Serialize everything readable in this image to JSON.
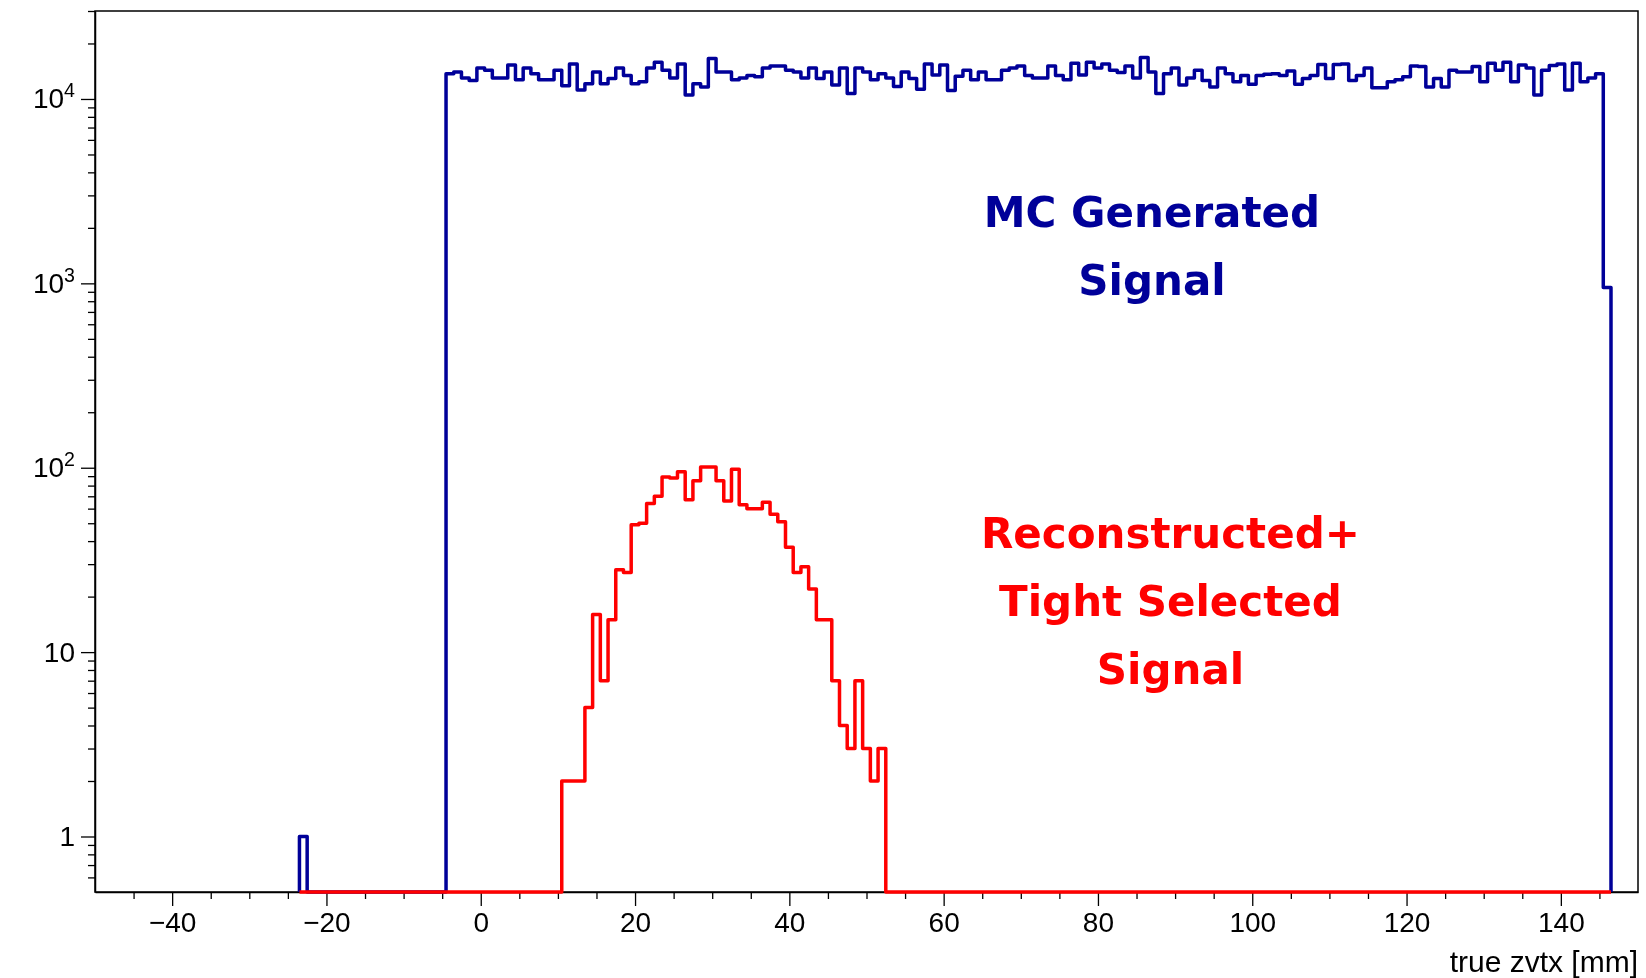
{
  "chart_data": {
    "type": "histogram",
    "xlabel": "true zvtx [mm]",
    "log": true,
    "xlim": [
      -50,
      150
    ],
    "ylim": [
      0.5,
      30000
    ],
    "xticks": [
      {
        "value": -45,
        "label": null
      },
      {
        "value": -40,
        "label": "−40"
      },
      {
        "value": -35,
        "label": null
      },
      {
        "value": -30,
        "label": null
      },
      {
        "value": -25,
        "label": null
      },
      {
        "value": -20,
        "label": "−20"
      },
      {
        "value": -15,
        "label": null
      },
      {
        "value": -10,
        "label": null
      },
      {
        "value": -5,
        "label": null
      },
      0,
      {
        "value": 5,
        "label": null
      },
      {
        "value": 10,
        "label": null
      },
      {
        "value": 15,
        "label": null
      },
      20,
      {
        "value": 25,
        "label": null
      },
      {
        "value": 30,
        "label": null
      },
      {
        "value": 35,
        "label": null
      },
      40,
      {
        "value": 45,
        "label": null
      },
      {
        "value": 50,
        "label": null
      },
      {
        "value": 55,
        "label": null
      },
      60,
      {
        "value": 65,
        "label": null
      },
      {
        "value": 70,
        "label": null
      },
      {
        "value": 75,
        "label": null
      },
      80,
      {
        "value": 85,
        "label": null
      },
      {
        "value": 90,
        "label": null
      },
      {
        "value": 95,
        "label": null
      },
      100,
      {
        "value": 105,
        "label": null
      },
      {
        "value": 110,
        "label": null
      },
      {
        "value": 115,
        "label": null
      },
      120,
      {
        "value": 125,
        "label": null
      },
      {
        "value": 130,
        "label": null
      },
      {
        "value": 135,
        "label": null
      },
      140,
      {
        "value": 145,
        "label": null
      }
    ],
    "yticks": [
      {
        "value": 0.6,
        "label": null
      },
      {
        "value": 0.7,
        "label": null
      },
      {
        "value": 0.8,
        "label": null
      },
      {
        "value": 0.9,
        "label": null
      },
      1,
      {
        "value": 2,
        "label": null
      },
      {
        "value": 3,
        "label": null
      },
      {
        "value": 4,
        "label": null
      },
      {
        "value": 5,
        "label": null
      },
      {
        "value": 6,
        "label": null
      },
      {
        "value": 7,
        "label": null
      },
      {
        "value": 8,
        "label": null
      },
      {
        "value": 9,
        "label": null
      },
      10,
      {
        "value": 20,
        "label": null
      },
      {
        "value": 30,
        "label": null
      },
      {
        "value": 40,
        "label": null
      },
      {
        "value": 50,
        "label": null
      },
      {
        "value": 60,
        "label": null
      },
      {
        "value": 70,
        "label": null
      },
      {
        "value": 80,
        "label": null
      },
      {
        "value": 90,
        "label": null
      },
      {
        "value": 100,
        "label": "10$^{2}$"
      },
      {
        "value": 200,
        "label": null
      },
      {
        "value": 300,
        "label": null
      },
      {
        "value": 400,
        "label": null
      },
      {
        "value": 500,
        "label": null
      },
      {
        "value": 600,
        "label": null
      },
      {
        "value": 700,
        "label": null
      },
      {
        "value": 800,
        "label": null
      },
      {
        "value": 900,
        "label": null
      },
      {
        "value": 1000,
        "label": "10$^{3}$"
      },
      {
        "value": 2000,
        "label": null
      },
      {
        "value": 3000,
        "label": null
      },
      {
        "value": 4000,
        "label": null
      },
      {
        "value": 5000,
        "label": null
      },
      {
        "value": 6000,
        "label": null
      },
      {
        "value": 7000,
        "label": null
      },
      {
        "value": 8000,
        "label": null
      },
      {
        "value": 9000,
        "label": null
      },
      {
        "value": 10000,
        "label": "10$^{4}$"
      },
      {
        "value": 20000,
        "label": null
      },
      {
        "value": 30000,
        "label": null
      }
    ],
    "bins": [
      -23.5,
      -22.5,
      -21.5,
      -20.5,
      -19.5,
      -18.5,
      -17.5,
      -16.5,
      -15.5,
      -14.5,
      -13.5,
      -12.5,
      -11.5,
      -10.5,
      -9.5,
      -8.5,
      -7.5,
      -6.5,
      -5.5,
      -4.5,
      -3.5,
      -2.5,
      -1.5,
      -0.5,
      0.5,
      1.5,
      2.5,
      3.5,
      4.5,
      5.5,
      6.5,
      7.5,
      8.5,
      9.5,
      10.5,
      11.5,
      12.5,
      13.5,
      14.5,
      15.5,
      16.5,
      17.5,
      18.5,
      19.5,
      20.5,
      21.5,
      22.5,
      23.5,
      24.5,
      25.5,
      26.5,
      27.5,
      28.5,
      29.5,
      30.5,
      31.5,
      32.5,
      33.5,
      34.5,
      35.5,
      36.5,
      37.5,
      38.5,
      39.5,
      40.5,
      41.5,
      42.5,
      43.5,
      44.5,
      45.5,
      46.5,
      47.5,
      48.5,
      49.5,
      50.5,
      51.5,
      52.5,
      53.5,
      54.5,
      55.5,
      56.5,
      57.5,
      58.5,
      59.5,
      60.5,
      61.5,
      62.5,
      63.5,
      64.5,
      65.5,
      66.5,
      67.5,
      68.5,
      69.5,
      70.5,
      71.5,
      72.5,
      73.5,
      74.5,
      75.5,
      76.5,
      77.5,
      78.5,
      79.5,
      80.5,
      81.5,
      82.5,
      83.5,
      84.5,
      85.5,
      86.5,
      87.5,
      88.5,
      89.5,
      90.5,
      91.5,
      92.5,
      93.5,
      94.5,
      95.5,
      96.5,
      97.5,
      98.5,
      99.5,
      100.5,
      101.5,
      102.5,
      103.5,
      104.5,
      105.5,
      106.5,
      107.5,
      108.5,
      109.5,
      110.5,
      111.5,
      112.5,
      113.5,
      114.5,
      115.5,
      116.5,
      117.5,
      118.5,
      119.5,
      120.5,
      121.5,
      122.5,
      123.5,
      124.5,
      125.5,
      126.5,
      127.5,
      128.5,
      129.5,
      130.5,
      131.5,
      132.5,
      133.5,
      134.5,
      135.5,
      136.5,
      137.5,
      138.5,
      139.5,
      140.5,
      141.5,
      142.5,
      143.5,
      144.5,
      145.5,
      146.5
    ],
    "series": [
      {
        "name": "MC Generated\nSignal",
        "color": "#000099",
        "values": [
          1,
          null,
          null,
          null,
          null,
          null,
          null,
          null,
          null,
          null,
          null,
          null,
          null,
          null,
          null,
          null,
          null,
          null,
          null,
          13700,
          14000,
          13000,
          12600,
          14700,
          14300,
          13000,
          13000,
          15300,
          12700,
          14700,
          13700,
          12700,
          12700,
          14300,
          11800,
          15500,
          11200,
          12100,
          14000,
          12100,
          12900,
          14700,
          13400,
          12100,
          12400,
          14700,
          15800,
          14300,
          13000,
          15500,
          10500,
          12100,
          11600,
          16600,
          14000,
          14000,
          12700,
          13000,
          13400,
          13200,
          14700,
          15100,
          15100,
          14300,
          14000,
          13000,
          14700,
          12900,
          14000,
          11900,
          14700,
          10700,
          14700,
          14000,
          12700,
          13700,
          13000,
          11700,
          14000,
          12900,
          11300,
          15500,
          13500,
          15300,
          11100,
          13300,
          14300,
          12700,
          14000,
          12700,
          12700,
          14300,
          14700,
          15100,
          13400,
          13000,
          13000,
          15100,
          13400,
          12700,
          15600,
          13500,
          15800,
          14700,
          15500,
          14300,
          13900,
          15100,
          13000,
          16800,
          14000,
          10700,
          13700,
          14700,
          11900,
          13000,
          14300,
          12600,
          11600,
          14700,
          13700,
          12400,
          13400,
          12000,
          13400,
          13600,
          13700,
          13400,
          14200,
          12000,
          12900,
          13400,
          15400,
          12900,
          15400,
          15500,
          12600,
          13400,
          14700,
          11500,
          11500,
          12400,
          12700,
          13200,
          15100,
          15000,
          11600,
          12900,
          11600,
          14300,
          14000,
          14000,
          15000,
          12400,
          15600,
          14300,
          15800,
          12400,
          15300,
          14700,
          10500,
          14300,
          15200,
          15500,
          11200,
          15600,
          12400,
          13000,
          13700,
          950
        ]
      },
      {
        "name": "Reconstructed+\nTight Selected\nSignal",
        "color": "#ff0000",
        "values": [
          null,
          null,
          null,
          null,
          null,
          null,
          null,
          null,
          null,
          null,
          null,
          null,
          null,
          null,
          null,
          null,
          null,
          null,
          null,
          null,
          null,
          null,
          null,
          null,
          null,
          null,
          null,
          null,
          null,
          null,
          null,
          null,
          null,
          null,
          2,
          2,
          2,
          5,
          16,
          7,
          15,
          28,
          27,
          49,
          50,
          64,
          70,
          89,
          88,
          95,
          67,
          85,
          101,
          101,
          85,
          66,
          98,
          63,
          60,
          60,
          65,
          56,
          51,
          37,
          27,
          29,
          22,
          15,
          15,
          7,
          4,
          3,
          7,
          3,
          2,
          3,
          null,
          null,
          null,
          null,
          null,
          null,
          null,
          null,
          null,
          null,
          null,
          null,
          null,
          null,
          null,
          null,
          null,
          null,
          null,
          null,
          null,
          null,
          null,
          null,
          null,
          null,
          null,
          null,
          null,
          null,
          null,
          null,
          null,
          null,
          null,
          null,
          null,
          null,
          null,
          null,
          null,
          null,
          null,
          null,
          null,
          null,
          null,
          null,
          null,
          null,
          null,
          null,
          null,
          null,
          null,
          null,
          null,
          null,
          null,
          null,
          null,
          null,
          null,
          null,
          null,
          null,
          null,
          null,
          null,
          null,
          null,
          null,
          null,
          null,
          null,
          null,
          null,
          null,
          null,
          null,
          null,
          null,
          null,
          null,
          null,
          null,
          null,
          null,
          null,
          null,
          null,
          null,
          null,
          null
        ]
      }
    ]
  }
}
